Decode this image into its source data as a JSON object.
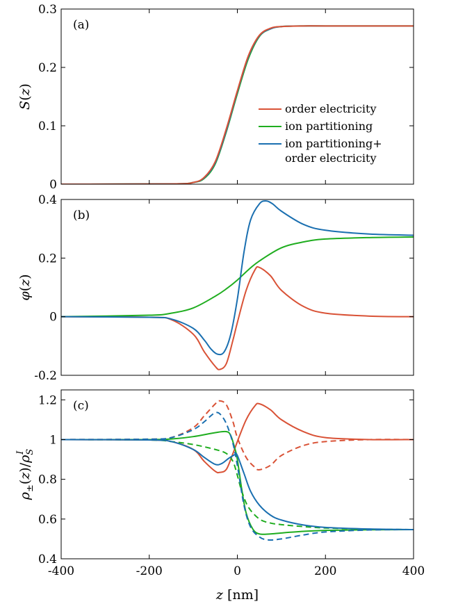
{
  "chart_data": [
    {
      "type": "line",
      "panel_label": "(a)",
      "ylabel": "S(z)",
      "xlim": [
        -400,
        400
      ],
      "ylim": [
        0,
        0.3
      ],
      "yticks": [
        0,
        0.1,
        0.2,
        0.3
      ],
      "ytick_labels": [
        "0",
        "0.1",
        "0.2",
        "0.3"
      ],
      "legend": {
        "placement": "center-right",
        "entries": [
          {
            "lines": [
              "order electricity"
            ],
            "color": "#d95236"
          },
          {
            "lines": [
              "ion partitioning"
            ],
            "color": "#1fad1f"
          },
          {
            "lines": [
              "ion partitioning+",
              "order electricity"
            ],
            "color": "#1a6fb0"
          }
        ]
      },
      "series": [
        {
          "color": "#1fad1f",
          "dash": false,
          "x": [
            -400,
            -150,
            -100,
            -75,
            -50,
            -25,
            0,
            25,
            50,
            75,
            100,
            150,
            200,
            400
          ],
          "y": [
            0,
            0.0005,
            0.003,
            0.01,
            0.035,
            0.09,
            0.155,
            0.215,
            0.253,
            0.266,
            0.27,
            0.271,
            0.271,
            0.271
          ]
        },
        {
          "color": "#1a6fb0",
          "dash": false,
          "x": [
            -400,
            -150,
            -100,
            -75,
            -50,
            -25,
            0,
            25,
            50,
            75,
            100,
            150,
            200,
            400
          ],
          "y": [
            0,
            0.0005,
            0.003,
            0.011,
            0.037,
            0.092,
            0.158,
            0.218,
            0.254,
            0.266,
            0.27,
            0.271,
            0.271,
            0.271
          ]
        },
        {
          "color": "#d95236",
          "dash": false,
          "x": [
            -400,
            -150,
            -100,
            -75,
            -50,
            -25,
            0,
            25,
            50,
            75,
            100,
            150,
            200,
            400
          ],
          "y": [
            0,
            0.0005,
            0.003,
            0.012,
            0.039,
            0.095,
            0.16,
            0.22,
            0.255,
            0.267,
            0.27,
            0.271,
            0.271,
            0.271
          ]
        }
      ]
    },
    {
      "type": "line",
      "panel_label": "(b)",
      "ylabel": "φ(z)",
      "xlim": [
        -400,
        400
      ],
      "ylim": [
        -0.2,
        0.4
      ],
      "yticks": [
        -0.2,
        0,
        0.2,
        0.4
      ],
      "ytick_labels": [
        "-0.2",
        "0",
        "0.2",
        "0.4"
      ],
      "series": [
        {
          "color": "#d95236",
          "dash": false,
          "x": [
            -400,
            -200,
            -150,
            -100,
            -75,
            -50,
            -40,
            -25,
            -10,
            0,
            20,
            40,
            50,
            75,
            100,
            150,
            200,
            300,
            400
          ],
          "y": [
            0,
            -0.002,
            -0.01,
            -0.06,
            -0.12,
            -0.17,
            -0.18,
            -0.16,
            -0.08,
            -0.02,
            0.09,
            0.16,
            0.168,
            0.14,
            0.09,
            0.035,
            0.012,
            0.002,
            0
          ]
        },
        {
          "color": "#1fad1f",
          "dash": false,
          "x": [
            -400,
            -200,
            -150,
            -100,
            -50,
            -25,
            0,
            25,
            50,
            100,
            150,
            200,
            300,
            400
          ],
          "y": [
            0,
            0.005,
            0.012,
            0.03,
            0.07,
            0.095,
            0.125,
            0.16,
            0.19,
            0.235,
            0.255,
            0.265,
            0.27,
            0.272
          ]
        },
        {
          "color": "#1a6fb0",
          "dash": false,
          "x": [
            -400,
            -200,
            -150,
            -100,
            -75,
            -60,
            -45,
            -30,
            -15,
            0,
            15,
            30,
            50,
            65,
            80,
            100,
            150,
            200,
            300,
            400
          ],
          "y": [
            0,
            -0.002,
            -0.008,
            -0.04,
            -0.08,
            -0.11,
            -0.128,
            -0.12,
            -0.06,
            0.06,
            0.22,
            0.33,
            0.385,
            0.395,
            0.385,
            0.36,
            0.315,
            0.295,
            0.282,
            0.278
          ]
        }
      ]
    },
    {
      "type": "line",
      "panel_label": "(c)",
      "ylabel": "ρ±(z)/ρ_S^I",
      "xlabel": "z [nm]",
      "xlim": [
        -400,
        400
      ],
      "ylim": [
        0.4,
        1.25
      ],
      "yticks": [
        0.4,
        0.6,
        0.8,
        1,
        1.2
      ],
      "ytick_labels": [
        "0.4",
        "0.6",
        "0.8",
        "1",
        "1.2"
      ],
      "xticks": [
        -400,
        -200,
        0,
        200,
        400
      ],
      "xtick_labels": [
        "-400",
        "-200",
        "0",
        "200",
        "400"
      ],
      "series": [
        {
          "color": "#d95236",
          "dash": false,
          "x": [
            -400,
            -200,
            -150,
            -100,
            -75,
            -50,
            -40,
            -25,
            -10,
            0,
            20,
            40,
            50,
            75,
            100,
            150,
            200,
            300,
            400
          ],
          "y": [
            1.0,
            0.998,
            0.99,
            0.95,
            0.89,
            0.84,
            0.835,
            0.85,
            0.93,
            0.99,
            1.1,
            1.17,
            1.18,
            1.15,
            1.1,
            1.04,
            1.01,
            1.0,
            1.0
          ]
        },
        {
          "color": "#d95236",
          "dash": true,
          "x": [
            -400,
            -200,
            -150,
            -100,
            -75,
            -50,
            -40,
            -25,
            -10,
            0,
            20,
            40,
            50,
            75,
            100,
            150,
            200,
            300,
            400
          ],
          "y": [
            1.0,
            1.002,
            1.01,
            1.06,
            1.12,
            1.18,
            1.195,
            1.175,
            1.09,
            1.01,
            0.91,
            0.86,
            0.848,
            0.87,
            0.92,
            0.97,
            0.99,
            1.0,
            1.0
          ]
        },
        {
          "color": "#1fad1f",
          "dash": false,
          "x": [
            -400,
            -200,
            -150,
            -100,
            -50,
            -25,
            -15,
            -5,
            0,
            10,
            20,
            35,
            50,
            75,
            100,
            150,
            200,
            300,
            400
          ],
          "y": [
            1.0,
            1.0,
            1.003,
            1.015,
            1.035,
            1.04,
            1.02,
            0.95,
            0.9,
            0.75,
            0.63,
            0.55,
            0.525,
            0.525,
            0.53,
            0.538,
            0.543,
            0.546,
            0.547
          ]
        },
        {
          "color": "#1fad1f",
          "dash": true,
          "x": [
            -400,
            -200,
            -150,
            -100,
            -50,
            -25,
            -10,
            0,
            10,
            25,
            50,
            75,
            100,
            150,
            200,
            300,
            400
          ],
          "y": [
            1.0,
            0.998,
            0.99,
            0.975,
            0.95,
            0.93,
            0.89,
            0.82,
            0.74,
            0.66,
            0.6,
            0.58,
            0.572,
            0.562,
            0.555,
            0.549,
            0.547
          ]
        },
        {
          "color": "#1a6fb0",
          "dash": false,
          "x": [
            -400,
            -200,
            -150,
            -100,
            -75,
            -50,
            -35,
            -20,
            -5,
            0,
            15,
            30,
            50,
            75,
            100,
            150,
            200,
            300,
            400
          ],
          "y": [
            1.0,
            0.998,
            0.99,
            0.95,
            0.91,
            0.875,
            0.88,
            0.905,
            0.925,
            0.92,
            0.83,
            0.74,
            0.67,
            0.62,
            0.595,
            0.57,
            0.558,
            0.55,
            0.547
          ]
        },
        {
          "color": "#1a6fb0",
          "dash": true,
          "x": [
            -400,
            -200,
            -150,
            -100,
            -75,
            -60,
            -50,
            -40,
            -25,
            -10,
            0,
            15,
            30,
            50,
            70,
            100,
            150,
            200,
            300,
            400
          ],
          "y": [
            1.0,
            1.002,
            1.01,
            1.05,
            1.09,
            1.12,
            1.135,
            1.13,
            1.08,
            0.98,
            0.87,
            0.67,
            0.56,
            0.51,
            0.495,
            0.5,
            0.52,
            0.535,
            0.545,
            0.547
          ]
        }
      ]
    }
  ]
}
